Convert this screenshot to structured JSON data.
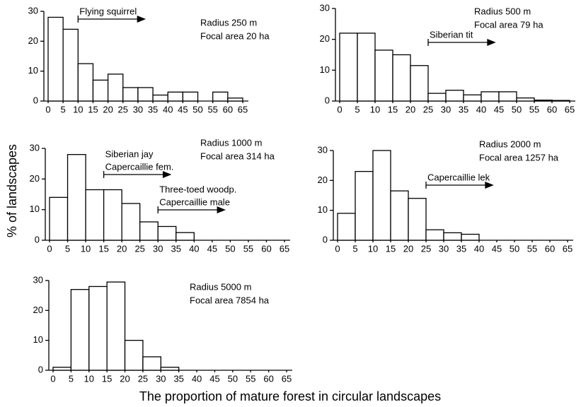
{
  "chart_data": [
    {
      "type": "histogram",
      "title": "Radius 250 m",
      "subtitle": "Focal area 20 ha",
      "bins": [
        0,
        5,
        10,
        15,
        20,
        25,
        30,
        35,
        40,
        45,
        50,
        55,
        60,
        65
      ],
      "values": [
        28,
        24,
        12.5,
        7,
        9,
        4.5,
        4.5,
        2,
        3,
        3,
        0,
        3,
        1
      ],
      "xlim": [
        0,
        65
      ],
      "xticks": [
        0,
        5,
        10,
        15,
        20,
        25,
        30,
        35,
        40,
        45,
        50,
        55,
        60,
        65
      ],
      "ylim": [
        0,
        30
      ],
      "yticks": [
        0,
        10,
        20,
        30
      ],
      "color": "#ffffff",
      "annotations": [
        {
          "lines": [
            "Flying squirrel"
          ],
          "x": 10
        }
      ]
    },
    {
      "type": "histogram",
      "title": "Radius 500 m",
      "subtitle": "Focal area 79 ha",
      "bins": [
        0,
        5,
        10,
        15,
        20,
        25,
        30,
        35,
        40,
        45,
        50,
        55,
        60,
        65
      ],
      "values": [
        22,
        22,
        16.5,
        15,
        11.5,
        2.5,
        3.5,
        2,
        3,
        3,
        1,
        0.3,
        0.2
      ],
      "xlim": [
        0,
        65
      ],
      "xticks": [
        0,
        5,
        10,
        15,
        20,
        25,
        30,
        35,
        40,
        45,
        50,
        55,
        60,
        65
      ],
      "ylim": [
        0,
        30
      ],
      "yticks": [
        0,
        10,
        20,
        30
      ],
      "color": "#ffffff",
      "annotations": [
        {
          "lines": [
            "Siberian tit"
          ],
          "x": 25
        }
      ]
    },
    {
      "type": "histogram",
      "title": "Radius 1000 m",
      "subtitle": "Focal area 314 ha",
      "bins": [
        0,
        5,
        10,
        15,
        20,
        25,
        30,
        35,
        40,
        45,
        50,
        55,
        60,
        65
      ],
      "values": [
        14,
        28,
        16.5,
        16.5,
        12,
        6,
        4.5,
        2.5,
        0,
        0,
        0,
        0,
        0
      ],
      "xlim": [
        0,
        65
      ],
      "xticks": [
        0,
        5,
        10,
        15,
        20,
        25,
        30,
        35,
        40,
        45,
        50,
        55,
        60,
        65
      ],
      "ylim": [
        0,
        30
      ],
      "yticks": [
        0,
        10,
        20,
        30
      ],
      "color": "#ffffff",
      "annotations": [
        {
          "lines": [
            "Siberian jay",
            "Capercaillie fem."
          ],
          "x": 15
        },
        {
          "lines": [
            "Three-toed woodp.",
            "Capercaillie male"
          ],
          "x": 30
        }
      ]
    },
    {
      "type": "histogram",
      "title": "Radius 2000 m",
      "subtitle": "Focal area 1257 ha",
      "bins": [
        0,
        5,
        10,
        15,
        20,
        25,
        30,
        35,
        40,
        45,
        50,
        55,
        60,
        65
      ],
      "values": [
        9,
        23,
        30,
        16.5,
        14,
        3.5,
        2.5,
        2,
        0,
        0,
        0,
        0,
        0
      ],
      "xlim": [
        0,
        65
      ],
      "xticks": [
        0,
        5,
        10,
        15,
        20,
        25,
        30,
        35,
        40,
        45,
        50,
        55,
        60,
        65
      ],
      "ylim": [
        0,
        30
      ],
      "yticks": [
        0,
        10,
        20,
        30
      ],
      "color": "#ffffff",
      "annotations": [
        {
          "lines": [
            "Capercaillie lek"
          ],
          "x": 25
        }
      ]
    },
    {
      "type": "histogram",
      "title": "Radius 5000 m",
      "subtitle": "Focal area 7854 ha",
      "bins": [
        0,
        5,
        10,
        15,
        20,
        25,
        30,
        35,
        40,
        45,
        50,
        55,
        60,
        65
      ],
      "values": [
        1,
        27,
        28,
        29.5,
        10,
        4.5,
        1,
        0,
        0,
        0,
        0,
        0,
        0
      ],
      "xlim": [
        0,
        65
      ],
      "xticks": [
        0,
        5,
        10,
        15,
        20,
        25,
        30,
        35,
        40,
        45,
        50,
        55,
        60,
        65
      ],
      "ylim": [
        0,
        30
      ],
      "yticks": [
        0,
        10,
        20,
        30
      ],
      "color": "#ffffff",
      "annotations": []
    }
  ],
  "xlabel": "The proportion of mature forest in circular landscapes",
  "ylabel": "% of landscapes"
}
